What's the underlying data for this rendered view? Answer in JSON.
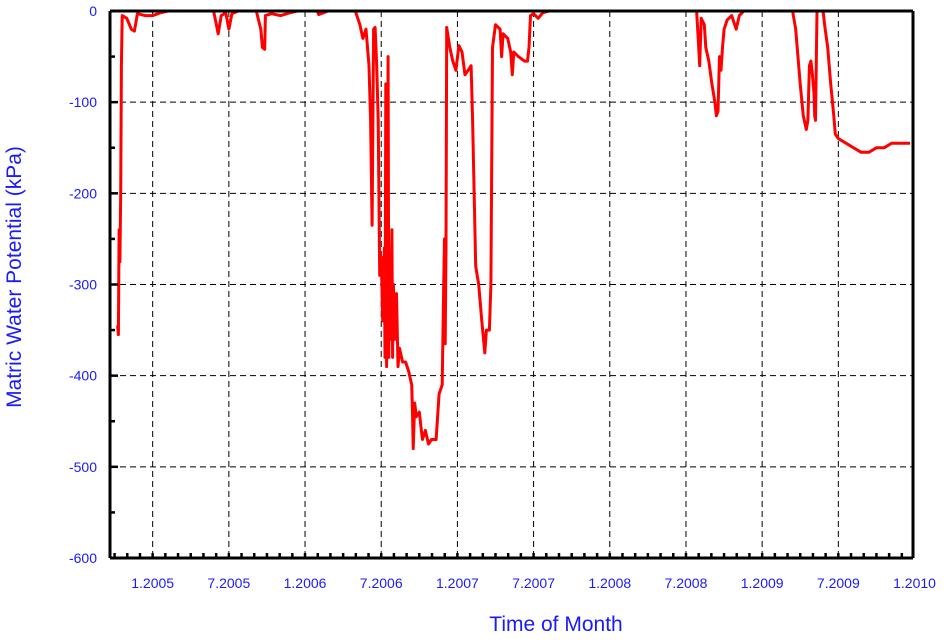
{
  "chart_data": {
    "type": "line",
    "title": "",
    "xlabel": "Time of Month",
    "ylabel": "Matric Water Potential  (kPa)",
    "xlim": [
      2004.72,
      2009.99
    ],
    "ylim": [
      -600,
      0
    ],
    "grid": true,
    "legend": "none",
    "colors": {
      "line": "#ff0000",
      "text": "#1a1aff",
      "axis": "#000000",
      "grid": "#000000"
    },
    "x_ticks": [
      {
        "value": 2005.0,
        "label": "1.2005"
      },
      {
        "value": 2005.5,
        "label": "7.2005"
      },
      {
        "value": 2006.0,
        "label": "1.2006"
      },
      {
        "value": 2006.5,
        "label": "7.2006"
      },
      {
        "value": 2007.0,
        "label": "1.2007"
      },
      {
        "value": 2007.5,
        "label": "7.2007"
      },
      {
        "value": 2008.0,
        "label": "1.2008"
      },
      {
        "value": 2008.5,
        "label": "7.2008"
      },
      {
        "value": 2009.0,
        "label": "1.2009"
      },
      {
        "value": 2009.5,
        "label": "7.2009"
      },
      {
        "value": 2010.0,
        "label": "1.2010"
      }
    ],
    "y_ticks": [
      {
        "value": 0,
        "label": "0"
      },
      {
        "value": -100,
        "label": "-100"
      },
      {
        "value": -200,
        "label": "-200"
      },
      {
        "value": -300,
        "label": "-300"
      },
      {
        "value": -400,
        "label": "-400"
      },
      {
        "value": -500,
        "label": "-500"
      },
      {
        "value": -600,
        "label": "-600"
      }
    ],
    "series": [
      {
        "points": [
          [
            2004.77,
            -345
          ],
          [
            2004.775,
            -355
          ],
          [
            2004.78,
            -240
          ],
          [
            2004.785,
            -275
          ],
          [
            2004.79,
            -200
          ],
          [
            2004.795,
            -60
          ],
          [
            2004.8,
            -5
          ],
          [
            2004.83,
            -8
          ],
          [
            2004.86,
            -20
          ],
          [
            2004.88,
            -22
          ],
          [
            2004.9,
            -3
          ],
          [
            2004.95,
            -5
          ],
          [
            2005.0,
            -5
          ],
          [
            2005.05,
            -2
          ],
          [
            2005.1,
            0
          ],
          [
            2005.4,
            0
          ],
          [
            2005.43,
            -25
          ],
          [
            2005.45,
            -5
          ],
          [
            2005.48,
            -2
          ],
          [
            2005.5,
            -20
          ],
          [
            2005.52,
            -3
          ],
          [
            2005.56,
            0
          ],
          [
            2005.68,
            0
          ],
          [
            2005.71,
            -20
          ],
          [
            2005.72,
            -40
          ],
          [
            2005.735,
            -42
          ],
          [
            2005.74,
            -5
          ],
          [
            2005.78,
            -3
          ],
          [
            2005.84,
            -5
          ],
          [
            2005.9,
            -2
          ],
          [
            2005.95,
            0
          ],
          [
            2006.08,
            0
          ],
          [
            2006.09,
            -4
          ],
          [
            2006.12,
            -2
          ],
          [
            2006.15,
            0
          ],
          [
            2006.33,
            0
          ],
          [
            2006.36,
            -15
          ],
          [
            2006.38,
            -30
          ],
          [
            2006.4,
            -20
          ],
          [
            2006.42,
            -60
          ],
          [
            2006.43,
            -120
          ],
          [
            2006.44,
            -235
          ],
          [
            2006.45,
            -20
          ],
          [
            2006.46,
            -18
          ],
          [
            2006.47,
            -60
          ],
          [
            2006.48,
            -120
          ],
          [
            2006.49,
            -290
          ],
          [
            2006.5,
            -270
          ],
          [
            2006.51,
            -340
          ],
          [
            2006.52,
            -260
          ],
          [
            2006.525,
            -380
          ],
          [
            2006.53,
            -80
          ],
          [
            2006.535,
            -390
          ],
          [
            2006.54,
            -300
          ],
          [
            2006.545,
            -50
          ],
          [
            2006.55,
            -380
          ],
          [
            2006.555,
            -280
          ],
          [
            2006.56,
            -360
          ],
          [
            2006.57,
            -240
          ],
          [
            2006.575,
            -380
          ],
          [
            2006.58,
            -300
          ],
          [
            2006.59,
            -360
          ],
          [
            2006.6,
            -310
          ],
          [
            2006.61,
            -390
          ],
          [
            2006.62,
            -370
          ],
          [
            2006.64,
            -385
          ],
          [
            2006.66,
            -385
          ],
          [
            2006.68,
            -395
          ],
          [
            2006.7,
            -410
          ],
          [
            2006.705,
            -440
          ],
          [
            2006.71,
            -480
          ],
          [
            2006.72,
            -430
          ],
          [
            2006.73,
            -445
          ],
          [
            2006.75,
            -440
          ],
          [
            2006.77,
            -470
          ],
          [
            2006.79,
            -460
          ],
          [
            2006.81,
            -475
          ],
          [
            2006.83,
            -470
          ],
          [
            2006.86,
            -470
          ],
          [
            2006.88,
            -420
          ],
          [
            2006.9,
            -410
          ],
          [
            2006.91,
            -300
          ],
          [
            2006.915,
            -250
          ],
          [
            2006.92,
            -365
          ],
          [
            2006.925,
            -260
          ],
          [
            2006.93,
            -18
          ],
          [
            2006.95,
            -40
          ],
          [
            2006.97,
            -55
          ],
          [
            2006.99,
            -65
          ],
          [
            2007.01,
            -38
          ],
          [
            2007.03,
            -45
          ],
          [
            2007.05,
            -70
          ],
          [
            2007.07,
            -65
          ],
          [
            2007.09,
            -60
          ],
          [
            2007.1,
            -120
          ],
          [
            2007.12,
            -280
          ],
          [
            2007.14,
            -300
          ],
          [
            2007.16,
            -340
          ],
          [
            2007.18,
            -375
          ],
          [
            2007.19,
            -350
          ],
          [
            2007.21,
            -350
          ],
          [
            2007.22,
            -300
          ],
          [
            2007.23,
            -40
          ],
          [
            2007.25,
            -15
          ],
          [
            2007.28,
            -20
          ],
          [
            2007.29,
            -50
          ],
          [
            2007.3,
            -25
          ],
          [
            2007.33,
            -30
          ],
          [
            2007.35,
            -45
          ],
          [
            2007.36,
            -70
          ],
          [
            2007.37,
            -45
          ],
          [
            2007.4,
            -50
          ],
          [
            2007.44,
            -55
          ],
          [
            2007.46,
            -55
          ],
          [
            2007.47,
            -40
          ],
          [
            2007.48,
            -5
          ],
          [
            2007.5,
            -3
          ],
          [
            2007.53,
            -8
          ],
          [
            2007.56,
            -2
          ],
          [
            2007.6,
            0
          ],
          [
            2008.57,
            0
          ],
          [
            2008.58,
            -30
          ],
          [
            2008.59,
            -60
          ],
          [
            2008.6,
            -8
          ],
          [
            2008.62,
            -15
          ],
          [
            2008.63,
            -40
          ],
          [
            2008.65,
            -55
          ],
          [
            2008.67,
            -80
          ],
          [
            2008.69,
            -100
          ],
          [
            2008.7,
            -115
          ],
          [
            2008.71,
            -110
          ],
          [
            2008.72,
            -50
          ],
          [
            2008.73,
            -65
          ],
          [
            2008.74,
            -40
          ],
          [
            2008.75,
            -20
          ],
          [
            2008.77,
            -10
          ],
          [
            2008.8,
            -5
          ],
          [
            2008.83,
            -20
          ],
          [
            2008.85,
            -5
          ],
          [
            2008.88,
            0
          ],
          [
            2009.2,
            0
          ],
          [
            2009.22,
            -20
          ],
          [
            2009.24,
            -60
          ],
          [
            2009.25,
            -80
          ],
          [
            2009.27,
            -115
          ],
          [
            2009.29,
            -130
          ],
          [
            2009.3,
            -120
          ],
          [
            2009.31,
            -60
          ],
          [
            2009.32,
            -55
          ],
          [
            2009.33,
            -70
          ],
          [
            2009.34,
            -90
          ],
          [
            2009.345,
            -115
          ],
          [
            2009.35,
            -120
          ],
          [
            2009.36,
            0
          ],
          [
            2009.4,
            0
          ],
          [
            2009.41,
            -15
          ],
          [
            2009.43,
            -40
          ],
          [
            2009.45,
            -80
          ],
          [
            2009.47,
            -115
          ],
          [
            2009.48,
            -135
          ],
          [
            2009.5,
            -140
          ],
          [
            2009.55,
            -145
          ],
          [
            2009.6,
            -150
          ],
          [
            2009.65,
            -155
          ],
          [
            2009.7,
            -155
          ],
          [
            2009.75,
            -150
          ],
          [
            2009.8,
            -150
          ],
          [
            2009.85,
            -145
          ],
          [
            2009.9,
            -145
          ],
          [
            2009.97,
            -145
          ]
        ]
      }
    ]
  }
}
